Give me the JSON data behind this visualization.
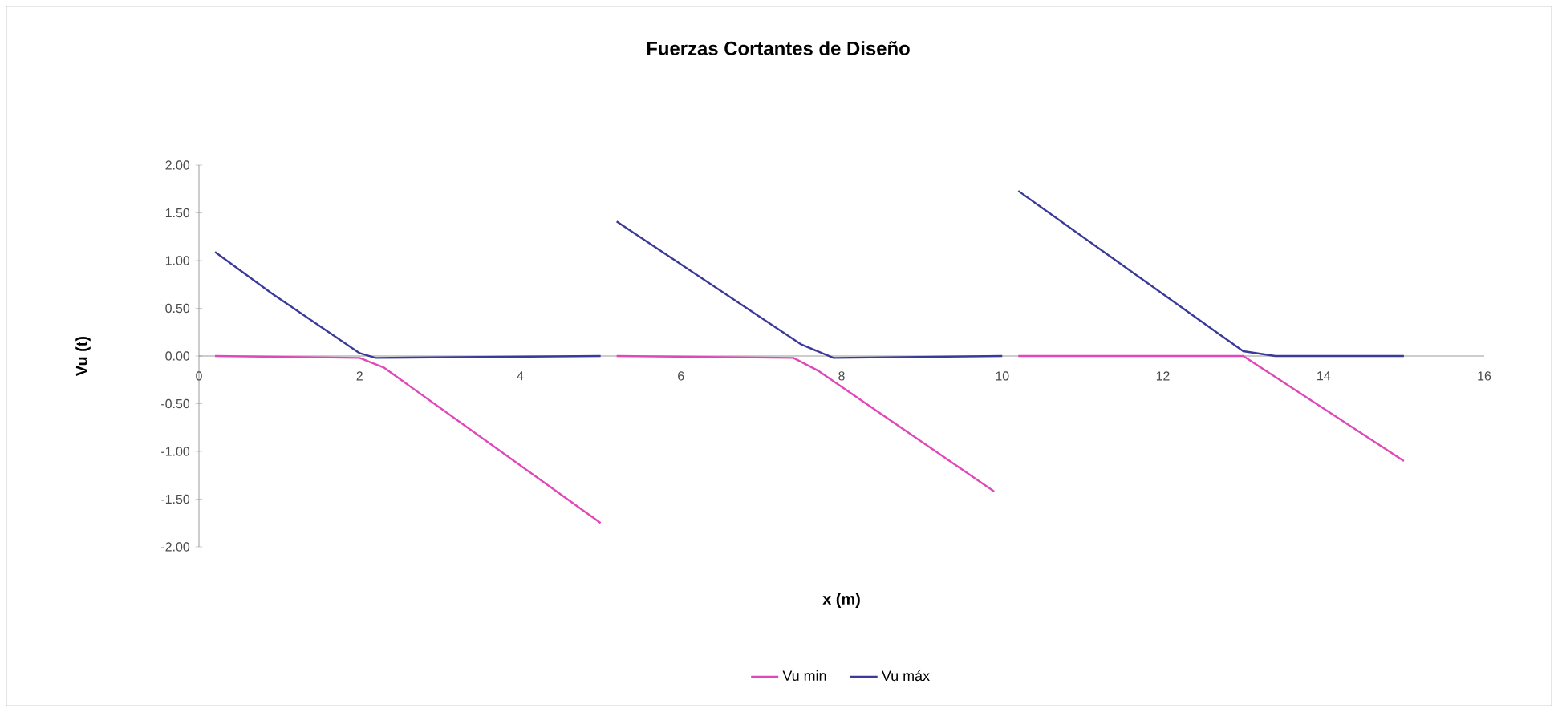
{
  "chart_data": {
    "type": "line",
    "title": "Fuerzas Cortantes de Diseño",
    "xlabel": "x (m)",
    "ylabel": "Vu (t)",
    "xlim": [
      0,
      16
    ],
    "xticks": [
      0,
      2,
      4,
      6,
      8,
      10,
      12,
      14,
      16
    ],
    "ylim": [
      -2,
      2
    ],
    "yticks": [
      {
        "value": 2,
        "label": "2.00"
      },
      {
        "value": 1.5,
        "label": "1.50"
      },
      {
        "value": 1,
        "label": "1.00"
      },
      {
        "value": 0.5,
        "label": "0.50"
      },
      {
        "value": 0,
        "label": "0.00"
      },
      {
        "value": -0.5,
        "label": "-0.50"
      },
      {
        "value": -1,
        "label": "-1.00"
      },
      {
        "value": -1.5,
        "label": "-1.50"
      },
      {
        "value": -2,
        "label": "-2.00"
      }
    ],
    "legend": "bottom",
    "grid": false,
    "marker": "none",
    "line_style": "solid",
    "series": [
      {
        "name": "Vu min",
        "color": "#e048b8",
        "x": [
          0.2,
          2.0,
          2.3,
          5.0,
          5.1,
          5.2,
          7.4,
          7.7,
          9.9,
          10.1,
          10.2,
          13.0,
          15.0
        ],
        "values": [
          0,
          -0.02,
          -0.12,
          -1.75,
          null,
          0,
          -0.02,
          -0.15,
          -1.42,
          null,
          0,
          0,
          -1.1
        ]
      },
      {
        "name": "Vu máx",
        "color": "#3a3a9a",
        "x": [
          0.2,
          0.9,
          2.0,
          2.2,
          5.0,
          5.1,
          5.2,
          7.5,
          7.9,
          10.0,
          10.1,
          10.2,
          13.0,
          13.4,
          15.0
        ],
        "values": [
          1.09,
          0.66,
          0.03,
          -0.02,
          0,
          null,
          1.41,
          0.12,
          -0.02,
          0,
          null,
          1.73,
          0.05,
          0,
          0
        ]
      }
    ]
  }
}
